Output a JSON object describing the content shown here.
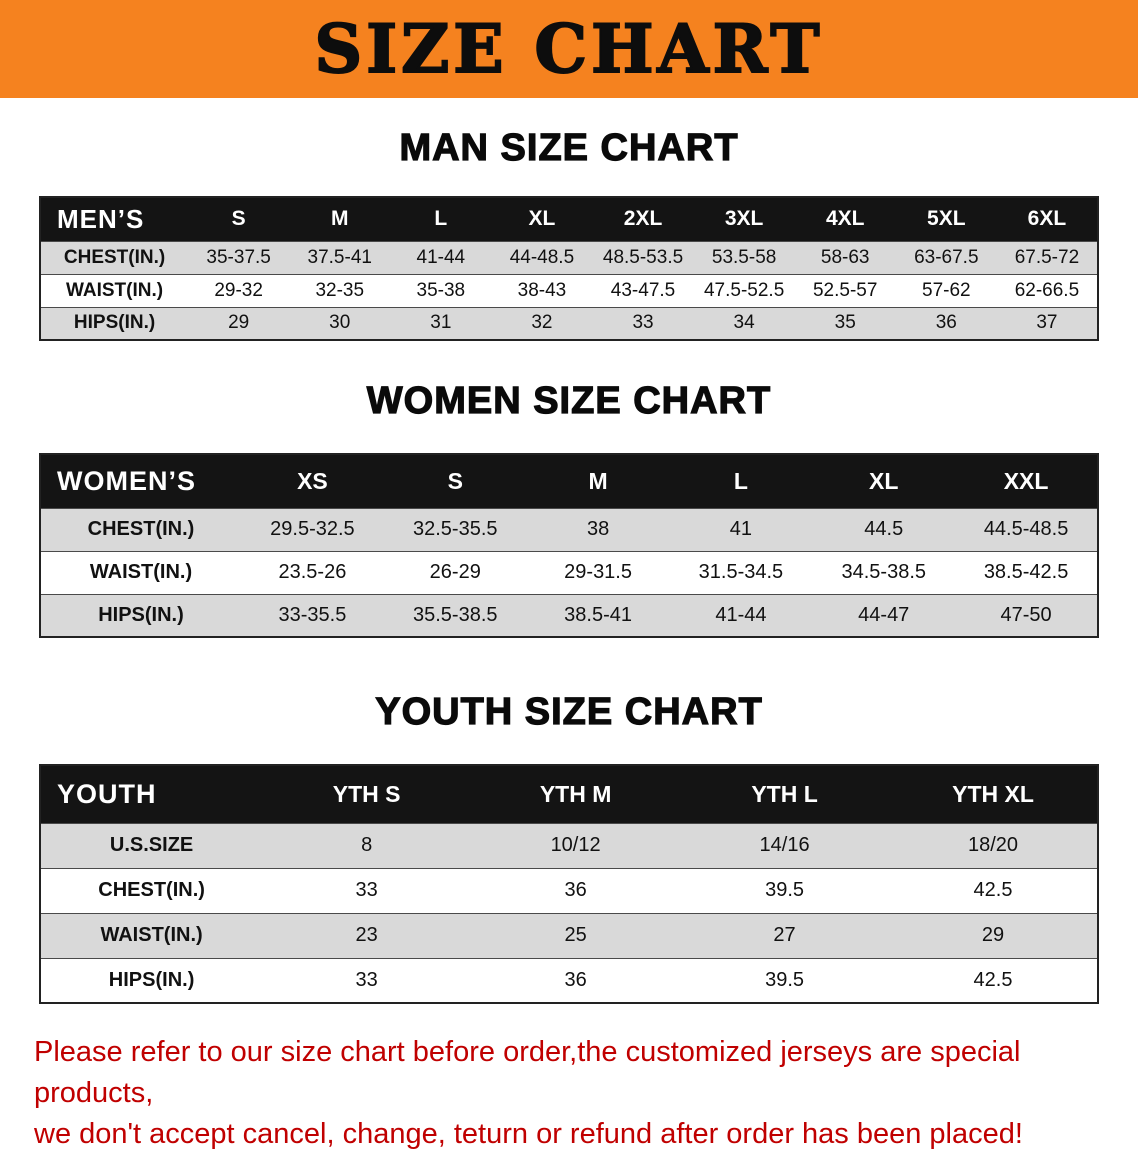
{
  "banner": {
    "title": "SIZE CHART"
  },
  "sections": [
    {
      "id": "men",
      "heading": "MAN SIZE CHART",
      "table": {
        "header": [
          "MEN’S",
          "S",
          "M",
          "L",
          "XL",
          "2XL",
          "3XL",
          "4XL",
          "5XL",
          "6XL"
        ],
        "rows": [
          [
            "CHEST(IN.)",
            "35-37.5",
            "37.5-41",
            "41-44",
            "44-48.5",
            "48.5-53.5",
            "53.5-58",
            "58-63",
            "63-67.5",
            "67.5-72"
          ],
          [
            "WAIST(IN.)",
            "29-32",
            "32-35",
            "35-38",
            "38-43",
            "43-47.5",
            "47.5-52.5",
            "52.5-57",
            "57-62",
            "62-66.5"
          ],
          [
            "HIPS(IN.)",
            "29",
            "30",
            "31",
            "32",
            "33",
            "34",
            "35",
            "36",
            "37"
          ]
        ]
      }
    },
    {
      "id": "women",
      "heading": "WOMEN SIZE CHART",
      "table": {
        "header": [
          "WOMEN’S",
          "XS",
          "S",
          "M",
          "L",
          "XL",
          "XXL"
        ],
        "rows": [
          [
            "CHEST(IN.)",
            "29.5-32.5",
            "32.5-35.5",
            "38",
            "41",
            "44.5",
            "44.5-48.5"
          ],
          [
            "WAIST(IN.)",
            "23.5-26",
            "26-29",
            "29-31.5",
            "31.5-34.5",
            "34.5-38.5",
            "38.5-42.5"
          ],
          [
            "HIPS(IN.)",
            "33-35.5",
            "35.5-38.5",
            "38.5-41",
            "41-44",
            "44-47",
            "47-50"
          ]
        ]
      }
    },
    {
      "id": "youth",
      "heading": "YOUTH SIZE CHART",
      "table": {
        "header": [
          "YOUTH",
          "YTH S",
          "YTH M",
          "YTH L",
          "YTH XL"
        ],
        "rows": [
          [
            "U.S.SIZE",
            "8",
            "10/12",
            "14/16",
            "18/20"
          ],
          [
            "CHEST(IN.)",
            "33",
            "36",
            "39.5",
            "42.5"
          ],
          [
            "WAIST(IN.)",
            "23",
            "25",
            "27",
            "29"
          ],
          [
            "HIPS(IN.)",
            "33",
            "36",
            "39.5",
            "42.5"
          ]
        ]
      }
    }
  ],
  "notice": {
    "lines": [
      "Please refer to our size chart before order,the customized jerseys are special products,",
      "we don't accept cancel, change, teturn or refund after order has been placed!"
    ]
  },
  "colors": {
    "banner_bg": "#f5821f",
    "header_bg": "#141414",
    "header_text": "#ffffff",
    "row_alt_bg": "#d9d9d9",
    "row_bg": "#ffffff",
    "notice_color": "#c00000"
  }
}
